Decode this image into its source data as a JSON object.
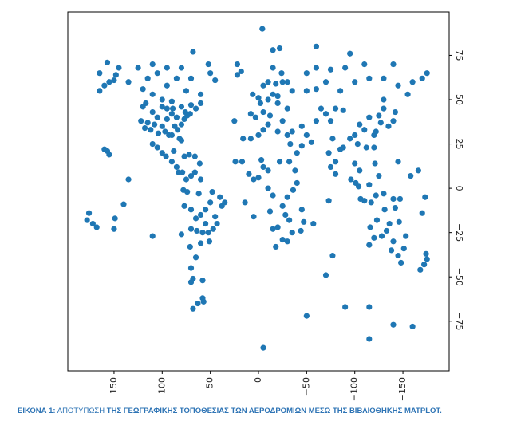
{
  "chart_data": {
    "type": "scatter",
    "color": "#1f77b4",
    "x": [
      165,
      155,
      150,
      160,
      148,
      145,
      157,
      165,
      135,
      120,
      110,
      100,
      90,
      80,
      70,
      65,
      60,
      75,
      95,
      115,
      125,
      105,
      85,
      70,
      80,
      95,
      110,
      60,
      122,
      118,
      112,
      105,
      97,
      95,
      90,
      87,
      84,
      80,
      77,
      74,
      71,
      100,
      120,
      110,
      85,
      80,
      93,
      117,
      100,
      90,
      82,
      76,
      89,
      104,
      115,
      108,
      95,
      100,
      105,
      110,
      96,
      90,
      85,
      83,
      79,
      88,
      72,
      66,
      61,
      77,
      75,
      70,
      66,
      60,
      74,
      78,
      77,
      70,
      65,
      60,
      55,
      48,
      40,
      38,
      45,
      47,
      52,
      58,
      64,
      70,
      71,
      60,
      51,
      65,
      70,
      68,
      70,
      55,
      43,
      35,
      50,
      62,
      58,
      50,
      45,
      52,
      68,
      22,
      22,
      18,
      157,
      155,
      160,
      149,
      140,
      176,
      178,
      172,
      168,
      150,
      110,
      80,
      135,
      0,
      -2,
      3,
      8,
      -10,
      -15,
      -20,
      -12,
      -25,
      -30,
      -35,
      -25,
      -18,
      -10,
      -5,
      -30,
      -24,
      -15,
      -20,
      6,
      -5,
      -50,
      -60,
      -70,
      -85,
      -100,
      -115,
      -130,
      -145,
      -160,
      -175,
      -140,
      -110,
      -90,
      -75,
      -130,
      -155,
      -170,
      -60,
      -50,
      -35,
      -45,
      -50,
      -55,
      -45,
      -40,
      -60,
      -70,
      -75,
      -65,
      -80,
      -73,
      -77,
      -80,
      -85,
      -88,
      -75,
      -80,
      -100,
      -105,
      -115,
      -120,
      -112,
      -122,
      -125,
      -127,
      -135,
      -140,
      -142,
      -130,
      -95,
      -110,
      -103,
      -88,
      -120,
      -100,
      -105,
      -101,
      -104,
      -110,
      -117,
      -122,
      -125,
      -121,
      -115,
      -130,
      -140,
      -147,
      -96,
      -106,
      -115,
      -116,
      -123,
      -131,
      -133,
      -138,
      -145,
      -151,
      -153,
      -146,
      -142,
      -140,
      -128,
      -120,
      -148,
      -136,
      -174,
      -175,
      -172,
      -168,
      -166,
      -158,
      -145,
      -170,
      -173,
      17,
      10,
      5,
      0,
      -5,
      -10,
      -3,
      8,
      0,
      -5,
      -10,
      -20,
      -30,
      -33,
      -32,
      -38,
      -40,
      -36,
      -30,
      -25,
      -15,
      -12,
      -28,
      -32,
      -35,
      -30,
      -25,
      -18,
      -47,
      -44,
      -20,
      -15,
      -22,
      -10,
      -45,
      -57,
      25,
      16,
      24,
      14,
      5,
      -15,
      -22,
      -60,
      -95,
      -4,
      -5,
      -115,
      -140,
      -160,
      -90,
      -115,
      -50,
      57,
      58,
      63,
      68,
      -70,
      -77,
      -73
    ],
    "values": [
      65,
      60,
      61,
      58,
      64,
      68,
      71,
      55,
      60,
      56,
      53,
      50,
      49,
      46,
      47,
      45,
      53,
      55,
      58,
      62,
      68,
      65,
      62,
      62,
      68,
      68,
      70,
      48,
      38,
      34,
      33,
      40,
      32,
      39,
      42,
      35,
      33,
      27,
      39,
      41,
      42,
      46,
      46,
      43,
      40,
      36,
      30,
      48,
      35,
      30,
      28,
      43,
      45,
      31,
      37,
      36,
      45,
      20,
      23,
      25,
      18,
      15,
      12,
      9,
      9,
      21,
      19,
      18,
      14,
      18,
      5,
      7,
      9,
      5,
      -2,
      -1,
      -10,
      -12,
      -17,
      -15,
      -12,
      -2,
      -5,
      -10,
      -16,
      -23,
      -25,
      -25,
      -24,
      -23,
      -33,
      -31,
      -30,
      -39,
      -45,
      -51,
      -53,
      -20,
      -20,
      -8,
      -8,
      -3,
      -52,
      65,
      61,
      70,
      77,
      70,
      64,
      66,
      21,
      19,
      22,
      -17,
      -9,
      -14,
      -18,
      -20,
      -22,
      -23,
      -27,
      -26,
      5,
      51,
      48,
      40,
      42,
      50,
      53,
      48,
      41,
      38,
      45,
      55,
      60,
      59,
      60,
      58,
      60,
      65,
      68,
      52,
      53,
      43,
      55,
      56,
      60,
      55,
      60,
      62,
      62,
      58,
      60,
      65,
      70,
      70,
      68,
      67,
      50,
      53,
      62,
      68,
      65,
      32,
      35,
      30,
      26,
      24,
      20,
      38,
      42,
      38,
      45,
      45,
      20,
      28,
      15,
      22,
      23,
      12,
      8,
      30,
      36,
      40,
      30,
      23,
      32,
      41,
      37,
      35,
      38,
      43,
      45,
      28,
      33,
      25,
      44,
      23,
      14,
      10,
      3,
      1,
      -7,
      -8,
      -4,
      7,
      14,
      2,
      -3,
      -6,
      -6,
      5,
      -6,
      -32,
      -22,
      -18,
      -12,
      -24,
      -35,
      -38,
      -34,
      -27,
      -19,
      -11,
      -30,
      -27,
      -28,
      -42,
      -20,
      -37,
      -40,
      -43,
      -46,
      10,
      7,
      15,
      -14,
      -5,
      15,
      8,
      5,
      6,
      12,
      10,
      16,
      28,
      30,
      33,
      36,
      32,
      30,
      25,
      15,
      10,
      3,
      -1,
      -5,
      -10,
      -4,
      -13,
      -15,
      -18,
      -25,
      -30,
      -29,
      -33,
      -19,
      -24,
      -22,
      -23,
      15,
      0,
      -12,
      -20,
      38,
      28,
      15,
      -8,
      -16,
      78,
      79,
      80,
      76,
      90,
      -90,
      -85,
      -77,
      -78,
      -67,
      -67,
      -72,
      -64,
      -62,
      -65,
      -68,
      -49,
      -38,
      -7
    ],
    "xlim": [
      198,
      -198
    ],
    "ylim": [
      -103,
      99.5
    ],
    "xticks": [
      150,
      100,
      50,
      0,
      {
        "value": -50,
        "label": "−50"
      },
      {
        "value": -100,
        "label": "−100"
      },
      {
        "value": -150,
        "label": "−150"
      }
    ],
    "yticks": [
      75,
      50,
      25,
      0,
      {
        "value": -25,
        "label": "−25"
      },
      {
        "value": -50,
        "label": "−50"
      },
      {
        "value": -75,
        "label": "−75"
      }
    ]
  },
  "caption": {
    "label": "ΕΙΚΟΝΑ 1:",
    "text": "ΑΠΟΤΥΠΩΣΗ",
    "bold_text": "ΤΗΣ ΓΕΩΓΡΑΦΙΚΗΣ ΤΟΠΟΘΕΣΙΑΣ ΤΩΝ ΑΕΡΟΔΡΟΜΙΩΝ ΜΕΣΩ ΤΗΣ ΒΙΒΛΙΟΘΗΚΗΣ",
    "name": "MATPLOT."
  }
}
